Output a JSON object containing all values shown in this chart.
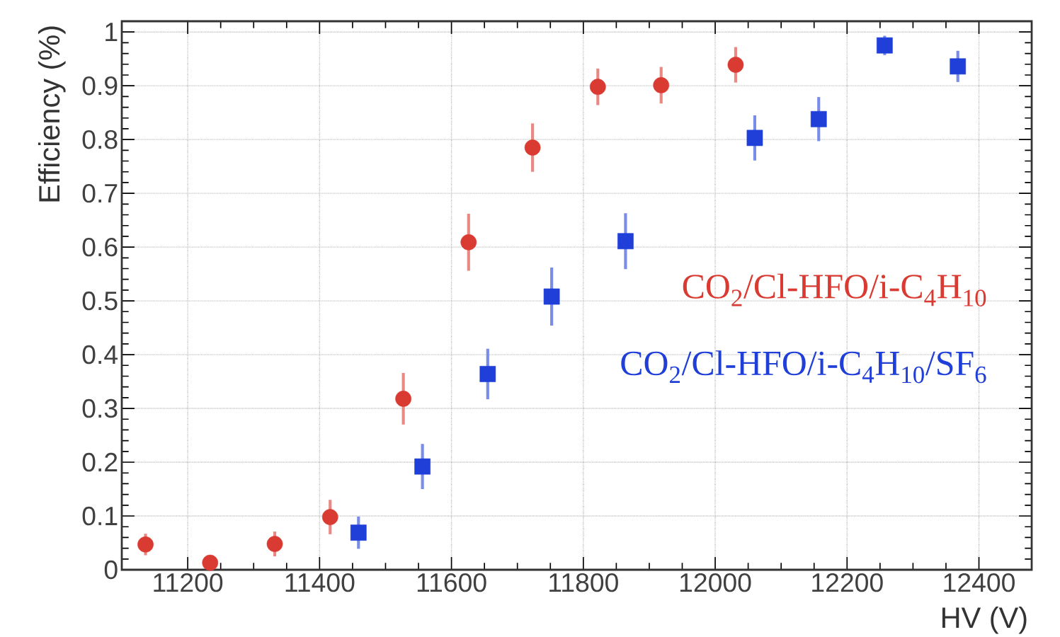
{
  "chart_data": {
    "type": "scatter",
    "xlabel": "HV (V)",
    "ylabel": "Efficiency (%)",
    "xlim": [
      11100,
      12480
    ],
    "ylim": [
      0,
      1.02
    ],
    "xticks": [
      11200,
      11400,
      11600,
      11800,
      12000,
      12200,
      12400
    ],
    "yticks": [
      0,
      0.1,
      0.2,
      0.3,
      0.4,
      0.5,
      0.6,
      0.7,
      0.8,
      0.9,
      1
    ],
    "grid": true,
    "series": [
      {
        "name": "CO$_{2}$/Cl-HFO/i-C$_{4}$H$_{10}$",
        "color": "#d93a32",
        "marker": "circle",
        "x": [
          11136,
          11234,
          11332,
          11416,
          11527,
          11626,
          11723,
          11822,
          11918,
          12031
        ],
        "values": [
          0.047,
          0.013,
          0.048,
          0.098,
          0.318,
          0.609,
          0.785,
          0.898,
          0.901,
          0.939
        ],
        "errors": [
          0.02,
          0.01,
          0.023,
          0.032,
          0.048,
          0.053,
          0.045,
          0.034,
          0.034,
          0.033
        ]
      },
      {
        "name": "CO$_{2}$/Cl-HFO/i-C$_{4}$H$_{10}$/SF$_{6}$",
        "color": "#1f3fd8",
        "marker": "square",
        "x": [
          11459,
          11556,
          11655,
          11752,
          11864,
          12060,
          12157,
          12257,
          12368
        ],
        "values": [
          0.069,
          0.192,
          0.364,
          0.508,
          0.611,
          0.803,
          0.838,
          0.975,
          0.936
        ],
        "errors": [
          0.03,
          0.042,
          0.047,
          0.054,
          0.052,
          0.042,
          0.041,
          0.018,
          0.029
        ]
      }
    ]
  }
}
